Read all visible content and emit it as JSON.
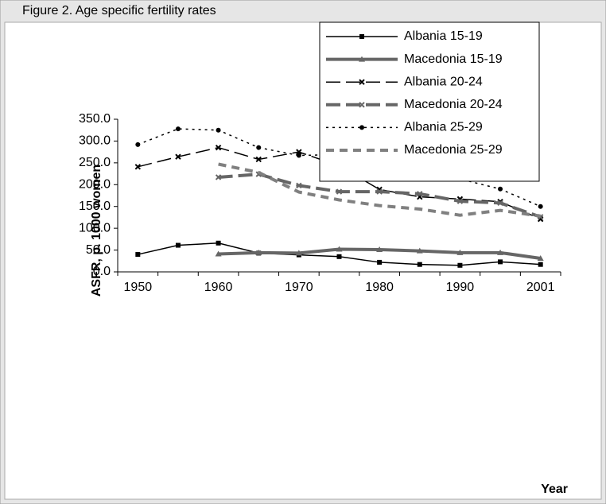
{
  "chart_data": {
    "type": "line",
    "title": "Figure 2. Age specific fertility rates",
    "ylabel": "ASFR, p. 1000 women",
    "xlabel": "Year",
    "categories": [
      "1950",
      null,
      "1960",
      null,
      "1970",
      null,
      "1980",
      null,
      "1990",
      null,
      "2001"
    ],
    "ylim": [
      0,
      350
    ],
    "yticks": [
      {
        "value": 0,
        "label": "0.0"
      },
      {
        "value": 50,
        "label": "50.0"
      },
      {
        "value": 100,
        "label": "100.0"
      },
      {
        "value": 150,
        "label": "150.0"
      },
      {
        "value": 200,
        "label": "200.0"
      },
      {
        "value": 250,
        "label": "250.0"
      },
      {
        "value": 300,
        "label": "300.0"
      },
      {
        "value": 350,
        "label": "350.0"
      }
    ],
    "grid": false,
    "legend": "upper right",
    "series": [
      {
        "name": "Albania 15-19",
        "color": "#000000",
        "line_style": "solid",
        "marker": "square",
        "width": 1.5,
        "values": [
          40,
          61,
          66,
          43,
          39,
          35,
          22,
          17,
          15,
          23,
          17
        ]
      },
      {
        "name": "Macedonia 15-19",
        "color": "#666666",
        "line_style": "solid",
        "marker": "triangle",
        "width": 4,
        "values": [
          null,
          null,
          41,
          44,
          43,
          52,
          51,
          48,
          44,
          44,
          31
        ]
      },
      {
        "name": "Albania 20-24",
        "color": "#000000",
        "line_style": "dashed",
        "marker": "x",
        "width": 1.5,
        "values": [
          241,
          264,
          285,
          258,
          275,
          243,
          189,
          172,
          167,
          161,
          121
        ]
      },
      {
        "name": "Macedonia 20-24",
        "color": "#666666",
        "line_style": "dashed",
        "marker": "x",
        "width": 4,
        "values": [
          null,
          null,
          217,
          224,
          198,
          184,
          184,
          179,
          162,
          158,
          126
        ]
      },
      {
        "name": "Albania 25-29",
        "color": "#000000",
        "line_style": "dotted",
        "marker": "circle",
        "width": 1.5,
        "values": [
          292,
          328,
          325,
          285,
          267,
          269,
          223,
          217,
          213,
          190,
          150
        ]
      },
      {
        "name": "Macedonia 25-29",
        "color": "#808080",
        "line_style": "short-dashed",
        "marker": "none",
        "width": 4,
        "values": [
          null,
          null,
          247,
          228,
          183,
          165,
          152,
          144,
          130,
          141,
          128
        ]
      }
    ]
  }
}
